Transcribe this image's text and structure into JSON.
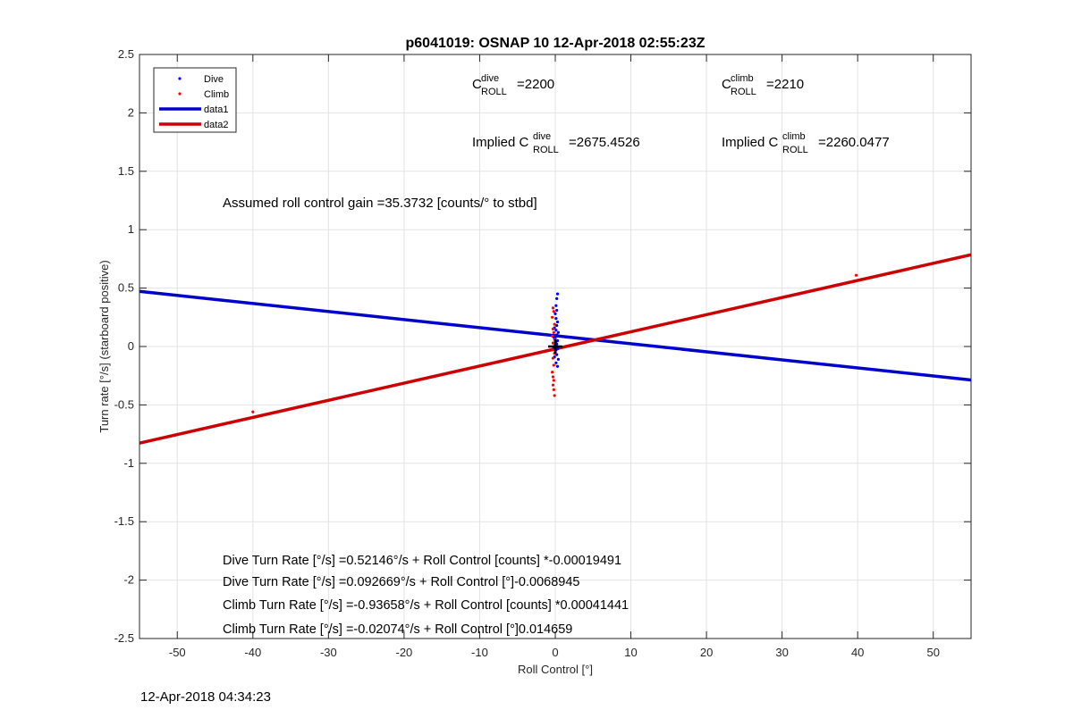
{
  "footer": {
    "timestamp": "12-Apr-2018 04:34:23"
  },
  "chart_data": {
    "type": "scatter",
    "title": "p6041019: OSNAP 10 12-Apr-2018 02:55:23Z",
    "xlabel": "Roll Control [°]",
    "ylabel": "Turn rate [°/s] (starboard positive)",
    "xlim": [
      -55,
      55
    ],
    "ylim": [
      -2.5,
      2.5
    ],
    "x_ticks": [
      -50,
      -40,
      -30,
      -20,
      -10,
      0,
      10,
      20,
      30,
      40,
      50
    ],
    "y_ticks": [
      -2.5,
      -2,
      -1.5,
      -1,
      -0.5,
      0,
      0.5,
      1,
      1.5,
      2,
      2.5
    ],
    "x_tick_labels": [
      "-50",
      "-40",
      "-30",
      "-20",
      "-10",
      "0",
      "10",
      "20",
      "30",
      "40",
      "50"
    ],
    "y_tick_labels": [
      "-2.5",
      "-2",
      "-1.5",
      "-1",
      "-0.5",
      "0",
      "0.5",
      "1",
      "1.5",
      "2",
      "2.5"
    ],
    "grid": true,
    "legend_position": "top-left",
    "legend": [
      {
        "label": "Dive",
        "kind": "marker",
        "color": "#0000ff"
      },
      {
        "label": "Climb",
        "kind": "marker",
        "color": "#ff0000"
      },
      {
        "label": "data1",
        "kind": "line",
        "color": "#0000cc"
      },
      {
        "label": "data2",
        "kind": "line",
        "color": "#cc0000"
      }
    ],
    "series": [
      {
        "name": "Dive",
        "kind": "scatter",
        "color": "#0000ff",
        "points": [
          [
            0.3,
            0.45
          ],
          [
            0.2,
            0.41
          ],
          [
            0.1,
            0.35
          ],
          [
            0.2,
            0.31
          ],
          [
            0.0,
            0.28
          ],
          [
            0.1,
            0.24
          ],
          [
            0.3,
            0.21
          ],
          [
            0.2,
            0.18
          ],
          [
            -0.1,
            0.16
          ],
          [
            0.1,
            0.14
          ],
          [
            0.4,
            0.12
          ],
          [
            0.2,
            0.1
          ],
          [
            -0.2,
            0.08
          ],
          [
            0.0,
            0.07
          ],
          [
            0.3,
            0.05
          ],
          [
            0.1,
            0.04
          ],
          [
            -0.1,
            0.03
          ],
          [
            0.2,
            0.02
          ],
          [
            0.0,
            0.01
          ],
          [
            0.1,
            0.0
          ],
          [
            -0.2,
            -0.01
          ],
          [
            0.3,
            -0.02
          ],
          [
            0.1,
            -0.03
          ],
          [
            0.0,
            -0.05
          ],
          [
            0.2,
            -0.07
          ],
          [
            -0.1,
            -0.09
          ],
          [
            0.4,
            -0.11
          ],
          [
            0.1,
            -0.14
          ],
          [
            0.3,
            -0.17
          ]
        ]
      },
      {
        "name": "Climb",
        "kind": "scatter",
        "color": "#ff0000",
        "points": [
          [
            -40,
            -0.56
          ],
          [
            39.8,
            0.61
          ],
          [
            -0.3,
            0.33
          ],
          [
            -0.2,
            0.3
          ],
          [
            -0.4,
            0.25
          ],
          [
            -0.1,
            0.19
          ],
          [
            -0.3,
            0.15
          ],
          [
            -0.2,
            0.12
          ],
          [
            -0.4,
            0.09
          ],
          [
            -0.1,
            0.06
          ],
          [
            -0.3,
            0.03
          ],
          [
            -0.2,
            0.0
          ],
          [
            -0.4,
            -0.03
          ],
          [
            -0.1,
            -0.06
          ],
          [
            -0.3,
            -0.1
          ],
          [
            -0.2,
            -0.16
          ],
          [
            -0.4,
            -0.22
          ],
          [
            -0.3,
            -0.26
          ],
          [
            -0.2,
            -0.29
          ],
          [
            -0.3,
            -0.33
          ],
          [
            -0.2,
            -0.37
          ],
          [
            -0.1,
            -0.42
          ]
        ]
      },
      {
        "name": "data1",
        "kind": "line",
        "color": "#0000cc",
        "x": [
          -55,
          55
        ],
        "y": [
          0.4717,
          -0.2867
        ]
      },
      {
        "name": "data2",
        "kind": "line",
        "color": "#cc0000",
        "x": [
          -55,
          55
        ],
        "y": [
          -0.8269,
          0.7855
        ]
      }
    ],
    "center_marker": {
      "symbol": "+",
      "x": 0,
      "y": 0,
      "color": "#000000"
    },
    "annotations": {
      "c_roll_dive": {
        "base": "C",
        "sup": "dive",
        "sub": "ROLL",
        "value": " =2200"
      },
      "c_roll_climb": {
        "base": "C",
        "sup": "climb",
        "sub": "ROLL",
        "value": " =2210"
      },
      "implied_dive": {
        "prefix": "Implied C",
        "sup": "dive",
        "sub": "ROLL",
        "value": " =2675.4526"
      },
      "implied_climb": {
        "prefix": "Implied C",
        "sup": "climb",
        "sub": "ROLL",
        "value": " =2260.0477"
      },
      "gain": "Assumed roll control gain =35.3732 [counts/° to stbd]",
      "fit_lines": [
        "Dive Turn Rate [°/s] =0.52146°/s + Roll Control [counts] *-0.00019491",
        "Dive Turn Rate [°/s] =0.092669°/s + Roll Control [°]-0.0068945",
        "Climb Turn Rate [°/s] =-0.93658°/s + Roll Control [counts] *0.00041441",
        "Climb Turn Rate [°/s] =-0.02074°/s + Roll Control [°]0.014659"
      ]
    }
  }
}
